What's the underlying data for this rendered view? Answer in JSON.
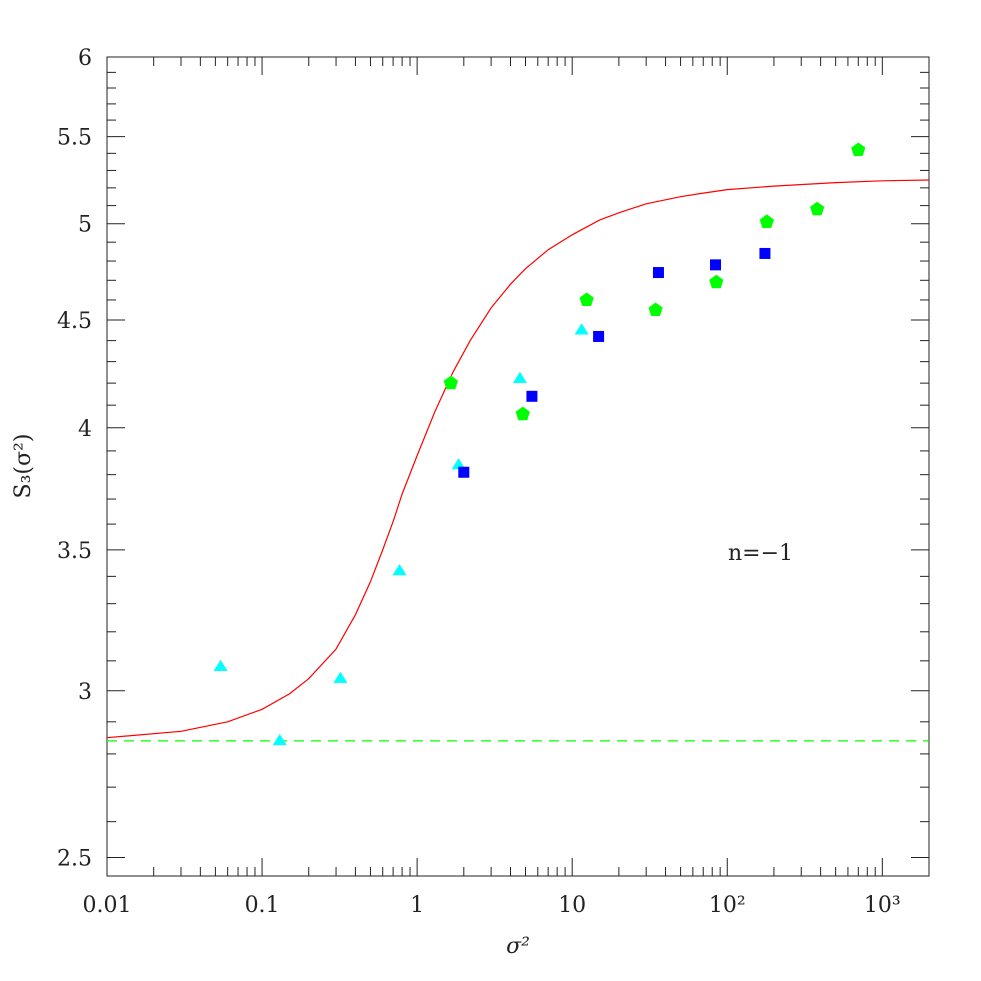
{
  "chart_data": {
    "type": "scatter",
    "xlabel": "σ²",
    "ylabel": "S₃(σ²)",
    "xscale": "log",
    "yscale": "log",
    "xlim": [
      0.01,
      2000
    ],
    "ylim": [
      2.45,
      6
    ],
    "x_ticks": [
      {
        "value": 0.01,
        "label": "0.01"
      },
      {
        "value": 0.1,
        "label": "0.1"
      },
      {
        "value": 1,
        "label": "1"
      },
      {
        "value": 10,
        "label": "10"
      },
      {
        "value": 100,
        "label": "10²"
      },
      {
        "value": 1000,
        "label": "10³"
      }
    ],
    "y_ticks": [
      {
        "value": 2.5,
        "label": "2.5"
      },
      {
        "value": 3,
        "label": "3"
      },
      {
        "value": 3.5,
        "label": "3.5"
      },
      {
        "value": 4,
        "label": "4"
      },
      {
        "value": 4.5,
        "label": "4.5"
      },
      {
        "value": 5,
        "label": "5"
      },
      {
        "value": 5.5,
        "label": "5.5"
      },
      {
        "value": 6,
        "label": "6"
      }
    ],
    "annotation": "n=−1",
    "grid": false,
    "series": [
      {
        "marker": "triangle",
        "color": "#00ffff",
        "points": [
          [
            0.054,
            3.08
          ],
          [
            0.13,
            2.84
          ],
          [
            0.32,
            3.04
          ],
          [
            0.77,
            3.42
          ],
          [
            1.85,
            3.84
          ],
          [
            4.6,
            4.22
          ],
          [
            11.5,
            4.45
          ]
        ]
      },
      {
        "marker": "square",
        "color": "#0000ff",
        "points": [
          [
            2.0,
            3.81
          ],
          [
            5.5,
            4.14
          ],
          [
            14.8,
            4.42
          ],
          [
            36,
            4.74
          ],
          [
            84,
            4.78
          ],
          [
            175,
            4.84
          ]
        ]
      },
      {
        "marker": "pentagon",
        "color": "#00ff00",
        "points": [
          [
            1.65,
            4.2
          ],
          [
            4.8,
            4.06
          ],
          [
            12.4,
            4.6
          ],
          [
            34.5,
            4.55
          ],
          [
            85,
            4.69
          ],
          [
            180,
            5.01
          ],
          [
            380,
            5.08
          ],
          [
            700,
            5.42
          ]
        ]
      },
      {
        "type": "line",
        "style": "solid",
        "color": "#ff0000",
        "points": [
          [
            0.01,
            2.85
          ],
          [
            0.03,
            2.87
          ],
          [
            0.06,
            2.9
          ],
          [
            0.1,
            2.94
          ],
          [
            0.15,
            2.99
          ],
          [
            0.2,
            3.04
          ],
          [
            0.3,
            3.14
          ],
          [
            0.4,
            3.26
          ],
          [
            0.5,
            3.38
          ],
          [
            0.6,
            3.5
          ],
          [
            0.7,
            3.61
          ],
          [
            0.8,
            3.72
          ],
          [
            1.0,
            3.88
          ],
          [
            1.3,
            4.07
          ],
          [
            1.7,
            4.25
          ],
          [
            2.2,
            4.4
          ],
          [
            3,
            4.56
          ],
          [
            4,
            4.68
          ],
          [
            5,
            4.76
          ],
          [
            7,
            4.86
          ],
          [
            10,
            4.94
          ],
          [
            15,
            5.02
          ],
          [
            20,
            5.06
          ],
          [
            30,
            5.11
          ],
          [
            50,
            5.15
          ],
          [
            70,
            5.17
          ],
          [
            100,
            5.19
          ],
          [
            200,
            5.21
          ],
          [
            500,
            5.23
          ],
          [
            1000,
            5.24
          ],
          [
            2000,
            5.245
          ]
        ]
      },
      {
        "type": "line",
        "style": "dashed",
        "color": "#00ff00",
        "points": [
          [
            0.01,
            2.84
          ],
          [
            2000,
            2.84
          ]
        ]
      }
    ]
  }
}
